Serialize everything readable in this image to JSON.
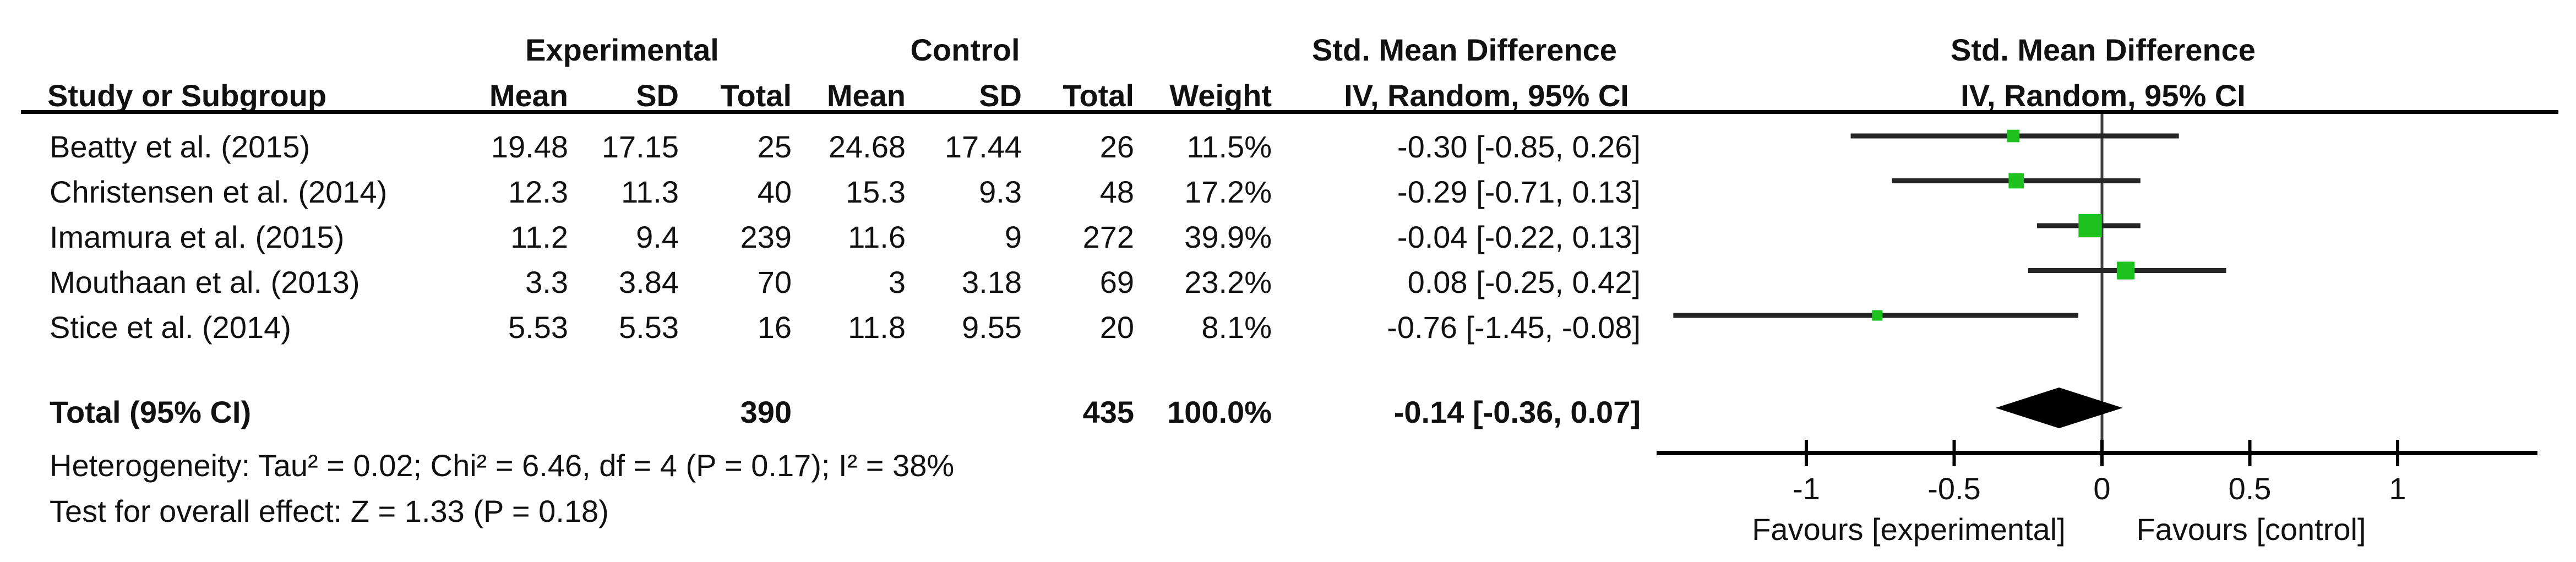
{
  "colors": {
    "background": "#ffffff",
    "text": "#111111",
    "header_text": "#000000",
    "marker_green": "#1ec21e",
    "ci_line": "#262626",
    "zero_line": "#3f3f3f",
    "axis": "#000000",
    "diamond": "#000000"
  },
  "header": {
    "experimental": "Experimental",
    "control": "Control",
    "smd_left": "Std. Mean Difference",
    "smd_right": "Std. Mean Difference",
    "study": "Study or Subgroup",
    "mean_e": "Mean",
    "sd_e": "SD",
    "total_e": "Total",
    "mean_c": "Mean",
    "sd_c": "SD",
    "total_c": "Total",
    "weight": "Weight",
    "method_left": "IV, Random, 95% CI",
    "method_right": "IV, Random, 95% CI"
  },
  "chart_data": {
    "type": "forest",
    "effect_measure": "Std. Mean Difference",
    "method": "IV, Random, 95% CI",
    "studies": [
      {
        "study": "Beatty et al. (2015)",
        "mean_e": "19.48",
        "sd_e": "17.15",
        "total_e": "25",
        "mean_c": "24.68",
        "sd_c": "17.44",
        "total_c": "26",
        "weight": "11.5%",
        "ci_text": "-0.30 [-0.85, 0.26]",
        "est": -0.3,
        "lo": -0.85,
        "hi": 0.26,
        "weight_pct": 11.5
      },
      {
        "study": "Christensen et al. (2014)",
        "mean_e": "12.3",
        "sd_e": "11.3",
        "total_e": "40",
        "mean_c": "15.3",
        "sd_c": "9.3",
        "total_c": "48",
        "weight": "17.2%",
        "ci_text": "-0.29 [-0.71, 0.13]",
        "est": -0.29,
        "lo": -0.71,
        "hi": 0.13,
        "weight_pct": 17.2
      },
      {
        "study": "Imamura et al. (2015)",
        "mean_e": "11.2",
        "sd_e": "9.4",
        "total_e": "239",
        "mean_c": "11.6",
        "sd_c": "9",
        "total_c": "272",
        "weight": "39.9%",
        "ci_text": "-0.04 [-0.22, 0.13]",
        "est": -0.04,
        "lo": -0.22,
        "hi": 0.13,
        "weight_pct": 39.9
      },
      {
        "study": "Mouthaan et al. (2013)",
        "mean_e": "3.3",
        "sd_e": "3.84",
        "total_e": "70",
        "mean_c": "3",
        "sd_c": "3.18",
        "total_c": "69",
        "weight": "23.2%",
        "ci_text": "0.08 [-0.25, 0.42]",
        "est": 0.08,
        "lo": -0.25,
        "hi": 0.42,
        "weight_pct": 23.2
      },
      {
        "study": "Stice et al. (2014)",
        "mean_e": "5.53",
        "sd_e": "5.53",
        "total_e": "16",
        "mean_c": "11.8",
        "sd_c": "9.55",
        "total_c": "20",
        "weight": "8.1%",
        "ci_text": "-0.76 [-1.45, -0.08]",
        "est": -0.76,
        "lo": -1.45,
        "hi": -0.08,
        "weight_pct": 8.1
      }
    ],
    "total": {
      "label": "Total (95% CI)",
      "total_e": "390",
      "total_c": "435",
      "weight": "100.0%",
      "ci_text": "-0.14 [-0.36, 0.07]",
      "est": -0.14,
      "lo": -0.36,
      "hi": 0.07
    },
    "x_axis": {
      "xlim": [
        -1.5,
        1.47
      ],
      "ticks": [
        -1,
        -0.5,
        0,
        0.5,
        1
      ],
      "tick_labels": [
        "-1",
        "-0.5",
        "0",
        "0.5",
        "1"
      ],
      "favours_left": "Favours [experimental]",
      "favours_right": "Favours [control]"
    }
  },
  "footer": {
    "heterogeneity": "Heterogeneity: Tau² = 0.02; Chi² = 6.46, df = 4 (P = 0.17); I² = 38%",
    "overall_effect": "Test for overall effect: Z = 1.33 (P = 0.18)"
  }
}
